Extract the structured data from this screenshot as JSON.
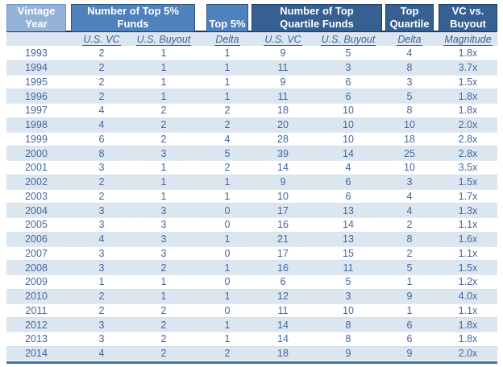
{
  "colors": {
    "header_light": "#95b3d7",
    "header_medium": "#4f81bd",
    "header_dark": "#366092",
    "header_underline": "#17375d",
    "stripe": "#dce6f1",
    "text": "#44689b",
    "bottom_rule": "#4172ab"
  },
  "chart_data": {
    "type": "table",
    "header_groups": [
      {
        "lines": [
          "Vintage",
          "Year"
        ],
        "tone": "light",
        "spans_columns": 1
      },
      {
        "lines": [
          "Number of Top 5%",
          "Funds"
        ],
        "tone": "medium",
        "spans_columns": 2
      },
      {
        "lines": [
          "",
          "Top 5%"
        ],
        "tone": "medium",
        "spans_columns": 1
      },
      {
        "lines": [
          "Number of Top",
          "Quartile Funds"
        ],
        "tone": "dark",
        "spans_columns": 2
      },
      {
        "lines": [
          "Top",
          "Quartile"
        ],
        "tone": "dark",
        "spans_columns": 1
      },
      {
        "lines": [
          "VC vs.",
          "Buyout"
        ],
        "tone": "dark",
        "spans_columns": 1
      }
    ],
    "sub_labels": [
      "",
      "U.S. VC",
      "U.S. Buyout",
      "Delta",
      "U.S. VC",
      "U.S. Buyout",
      "Delta",
      "Magnitude"
    ],
    "columns": [
      "Vintage Year",
      "Number of Top 5% Funds - U.S. VC",
      "Number of Top 5% Funds - U.S. Buyout",
      "Top 5% Delta",
      "Number of Top Quartile Funds - U.S. VC",
      "Number of Top Quartile Funds - U.S. Buyout",
      "Top Quartile Delta",
      "VC vs. Buyout Magnitude"
    ],
    "rows": [
      [
        "1993",
        "2",
        "1",
        "1",
        "9",
        "5",
        "4",
        "1.8x"
      ],
      [
        "1994",
        "2",
        "1",
        "1",
        "11",
        "3",
        "8",
        "3.7x"
      ],
      [
        "1995",
        "2",
        "1",
        "1",
        "9",
        "6",
        "3",
        "1.5x"
      ],
      [
        "1996",
        "2",
        "1",
        "1",
        "11",
        "6",
        "5",
        "1.8x"
      ],
      [
        "1997",
        "4",
        "2",
        "2",
        "18",
        "10",
        "8",
        "1.8x"
      ],
      [
        "1998",
        "4",
        "2",
        "2",
        "20",
        "10",
        "10",
        "2.0x"
      ],
      [
        "1999",
        "6",
        "2",
        "4",
        "28",
        "10",
        "18",
        "2.8x"
      ],
      [
        "2000",
        "8",
        "3",
        "5",
        "39",
        "14",
        "25",
        "2.8x"
      ],
      [
        "2001",
        "3",
        "1",
        "2",
        "14",
        "4",
        "10",
        "3.5x"
      ],
      [
        "2002",
        "2",
        "1",
        "1",
        "9",
        "6",
        "3",
        "1.5x"
      ],
      [
        "2003",
        "2",
        "1",
        "1",
        "10",
        "6",
        "4",
        "1.7x"
      ],
      [
        "2004",
        "3",
        "3",
        "0",
        "17",
        "13",
        "4",
        "1.3x"
      ],
      [
        "2005",
        "3",
        "3",
        "0",
        "16",
        "14",
        "2",
        "1.1x"
      ],
      [
        "2006",
        "4",
        "3",
        "1",
        "21",
        "13",
        "8",
        "1.6x"
      ],
      [
        "2007",
        "3",
        "3",
        "0",
        "17",
        "15",
        "2",
        "1.1x"
      ],
      [
        "2008",
        "3",
        "2",
        "1",
        "16",
        "11",
        "5",
        "1.5x"
      ],
      [
        "2009",
        "1",
        "1",
        "0",
        "6",
        "5",
        "1",
        "1.2x"
      ],
      [
        "2010",
        "2",
        "1",
        "1",
        "12",
        "3",
        "9",
        "4.0x"
      ],
      [
        "2011",
        "2",
        "2",
        "0",
        "11",
        "10",
        "1",
        "1.1x"
      ],
      [
        "2012",
        "3",
        "2",
        "1",
        "14",
        "8",
        "6",
        "1.8x"
      ],
      [
        "2013",
        "3",
        "2",
        "1",
        "14",
        "8",
        "6",
        "1.8x"
      ],
      [
        "2014",
        "4",
        "2",
        "2",
        "18",
        "9",
        "9",
        "2.0x"
      ]
    ]
  }
}
